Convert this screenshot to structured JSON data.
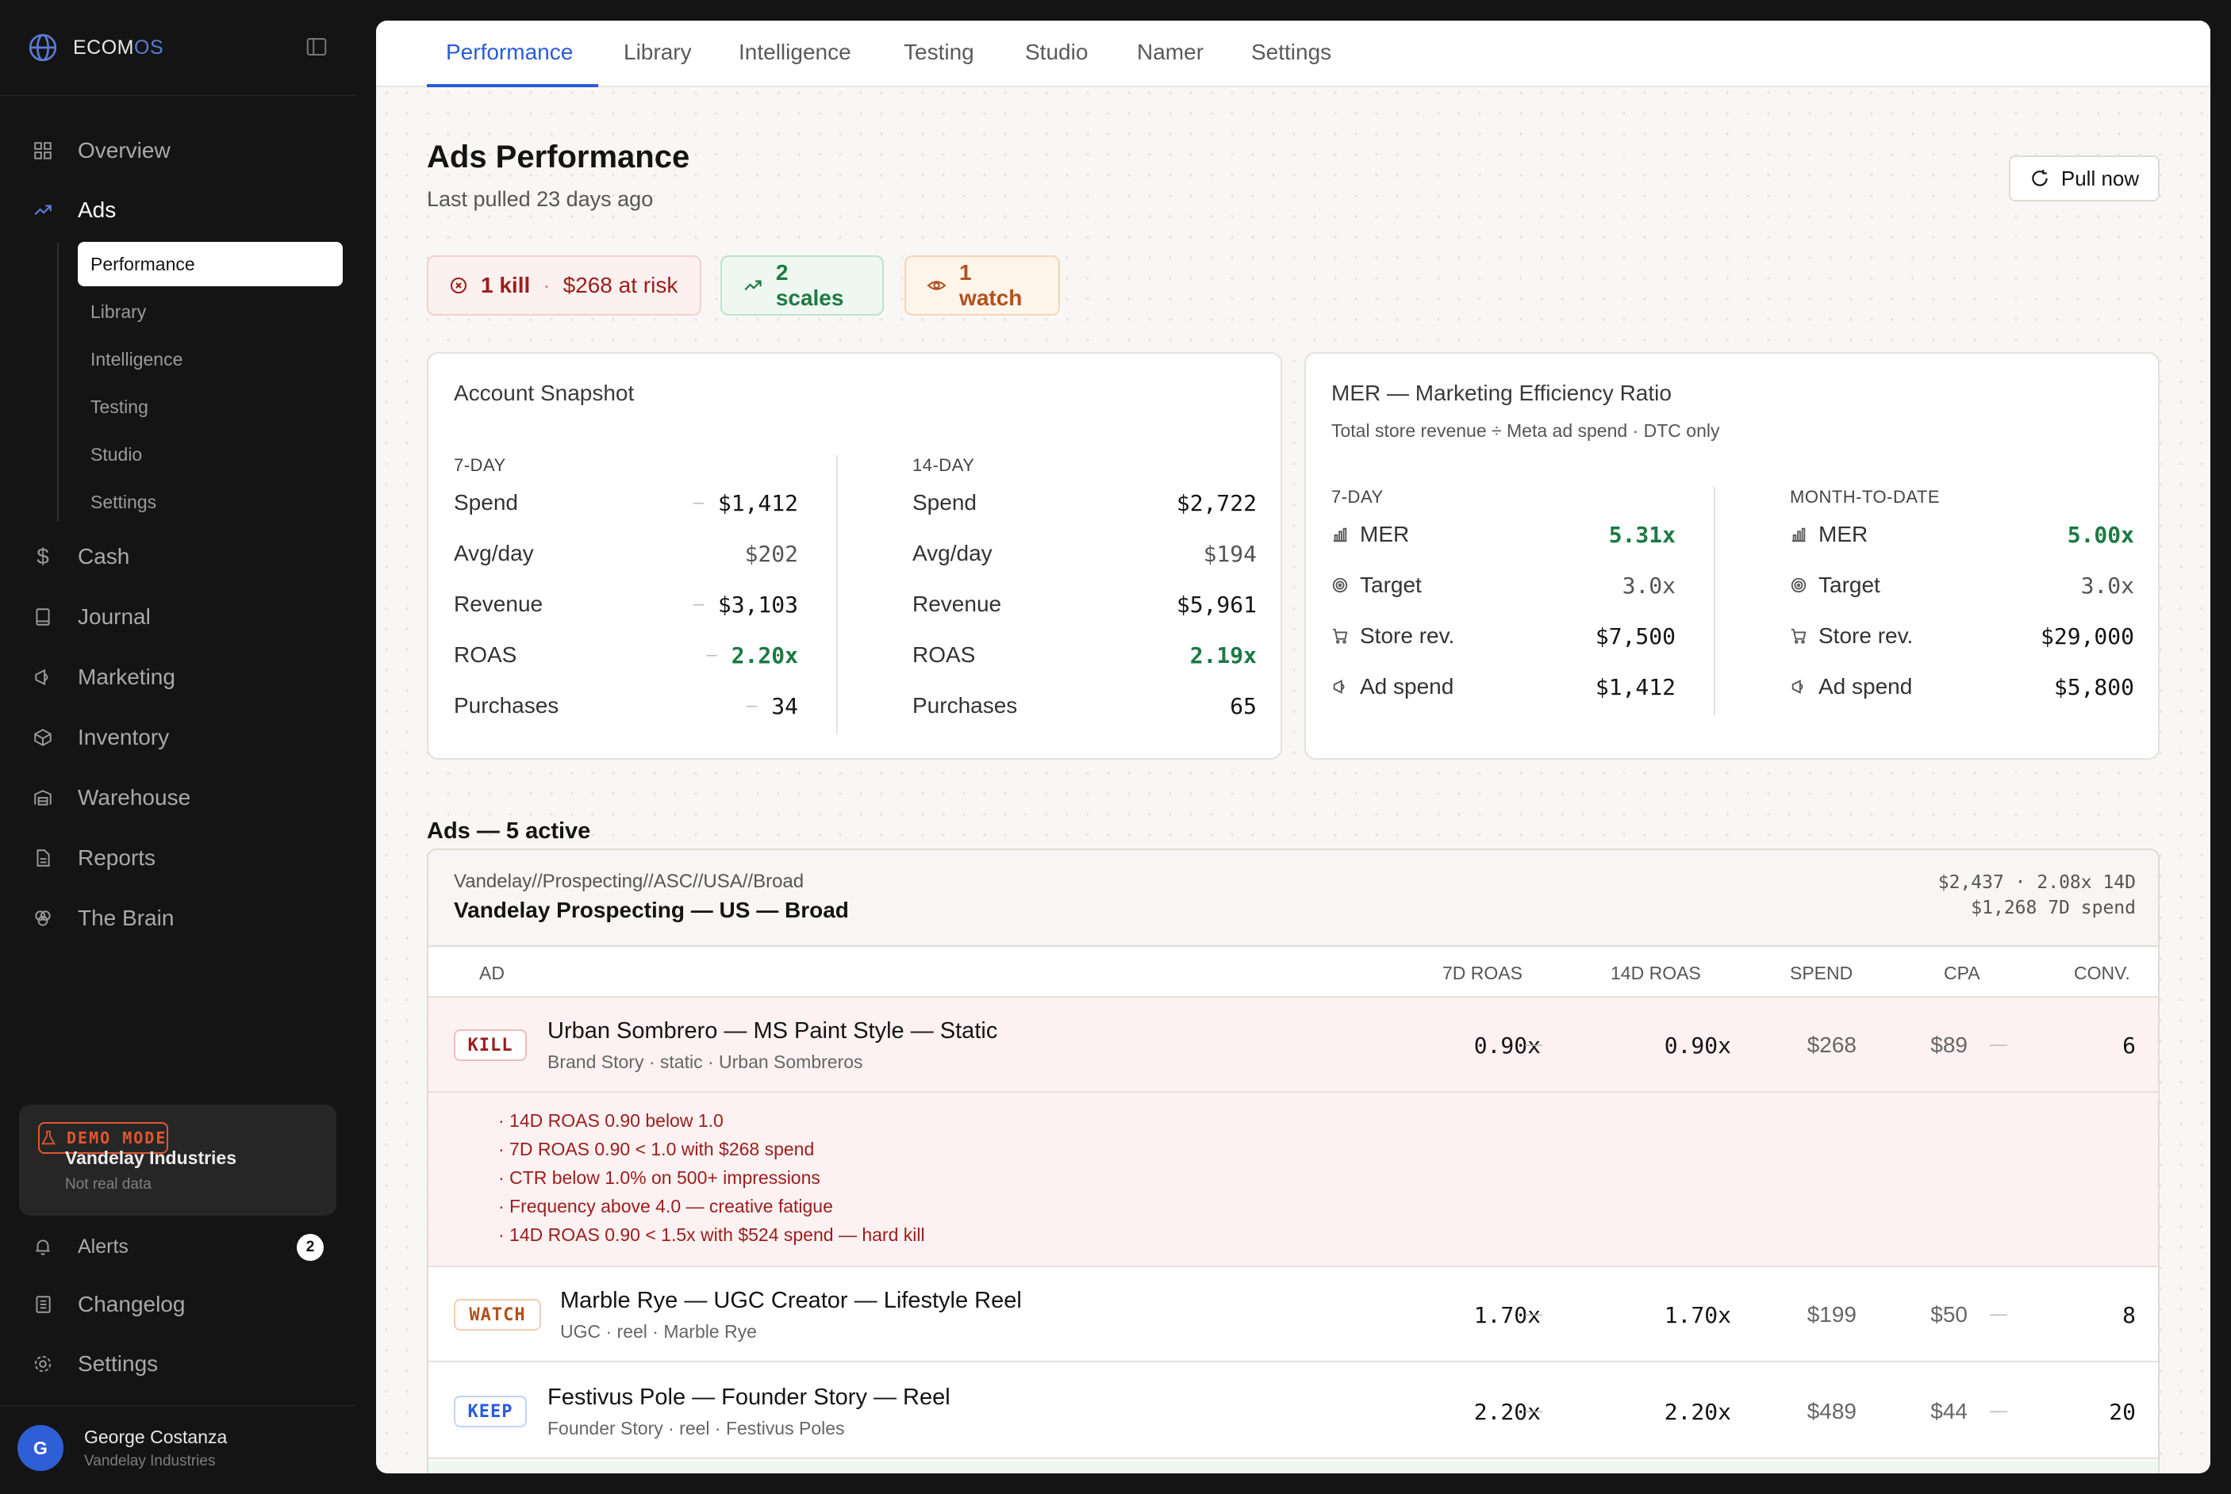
{
  "brand": {
    "name_main": "ECOM",
    "name_accent": "OS"
  },
  "sidebar": {
    "nav": [
      {
        "label": "Overview",
        "icon": "grid-icon"
      },
      {
        "label": "Ads",
        "icon": "trending-up-icon"
      },
      {
        "label": "Cash",
        "icon": "dollar-icon"
      },
      {
        "label": "Journal",
        "icon": "book-icon"
      },
      {
        "label": "Marketing",
        "icon": "megaphone-icon"
      },
      {
        "label": "Inventory",
        "icon": "box-icon"
      },
      {
        "label": "Warehouse",
        "icon": "warehouse-icon"
      },
      {
        "label": "Reports",
        "icon": "file-icon"
      },
      {
        "label": "The Brain",
        "icon": "brain-icon"
      }
    ],
    "ads_sub": [
      "Performance",
      "Library",
      "Intelligence",
      "Testing",
      "Studio",
      "Settings"
    ],
    "demo": {
      "tag": "DEMO MODE",
      "company": "Vandelay Industries",
      "note": "Not real data"
    },
    "bottom": {
      "alerts": "Alerts",
      "alerts_count": "2",
      "changelog": "Changelog",
      "settings": "Settings"
    },
    "user": {
      "initial": "G",
      "name": "George Costanza",
      "company": "Vandelay Industries"
    }
  },
  "tabs": [
    "Performance",
    "Library",
    "Intelligence",
    "Testing",
    "Studio",
    "Namer",
    "Settings"
  ],
  "page": {
    "title": "Ads Performance",
    "subtitle": "Last pulled 23 days ago",
    "pull_button": "Pull now"
  },
  "pills": {
    "kill": {
      "count": "1 kill",
      "sep": "·",
      "risk": "$268 at risk"
    },
    "scale": {
      "label": "2 scales"
    },
    "watch": {
      "label": "1 watch"
    }
  },
  "snapshot": {
    "title": "Account Snapshot",
    "d7": {
      "head": "7-DAY",
      "spend": "$1,412",
      "avg": "$202",
      "revenue": "$3,103",
      "roas": "2.20x",
      "purchases": "34"
    },
    "d14": {
      "head": "14-DAY",
      "spend": "$2,722",
      "avg": "$194",
      "revenue": "$5,961",
      "roas": "2.19x",
      "purchases": "65"
    },
    "labels": {
      "spend": "Spend",
      "avg": "Avg/day",
      "revenue": "Revenue",
      "roas": "ROAS",
      "purchases": "Purchases"
    }
  },
  "mer": {
    "title": "MER — Marketing Efficiency Ratio",
    "subtitle": "Total store revenue ÷ Meta ad spend · DTC only",
    "d7": {
      "head": "7-DAY",
      "mer": "5.31x",
      "target": "3.0x",
      "store": "$7,500",
      "spend": "$1,412"
    },
    "mtd": {
      "head": "MONTH-TO-DATE",
      "mer": "5.00x",
      "target": "3.0x",
      "store": "$29,000",
      "spend": "$5,800"
    },
    "labels": {
      "mer": "MER",
      "target": "Target",
      "store": "Store rev.",
      "spend": "Ad spend"
    }
  },
  "ads": {
    "section_title": "Ads — 5 active",
    "campaign": {
      "path": "Vandelay//Prospecting//ASC//USA//Broad",
      "name": "Vandelay Prospecting — US — Broad",
      "stat1": "$2,437 · 2.08x 14D",
      "stat2": "$1,268 7D spend"
    },
    "headers": {
      "ad": "AD",
      "r7": "7D ROAS",
      "r14": "14D ROAS",
      "spend": "SPEND",
      "cpa": "CPA",
      "conv": "CONV."
    },
    "rows": [
      {
        "tag": "KILL",
        "name": "Urban Sombrero — MS Paint Style — Static",
        "meta": "Brand Story · static · Urban Sombreros",
        "r7": "0.90x",
        "r14": "0.90x",
        "spend": "$268",
        "cpa": "$89",
        "conv": "6"
      },
      {
        "tag": "WATCH",
        "name": "Marble Rye — UGC Creator — Lifestyle Reel",
        "meta": "UGC · reel · Marble Rye",
        "r7": "1.70x",
        "r14": "1.70x",
        "spend": "$199",
        "cpa": "$50",
        "conv": "8"
      },
      {
        "tag": "KEEP",
        "name": "Festivus Pole — Founder Story — Reel",
        "meta": "Founder Story · reel · Festivus Poles",
        "r7": "2.20x",
        "r14": "2.20x",
        "spend": "$489",
        "cpa": "$44",
        "conv": "20"
      }
    ],
    "kill_reasons": [
      "· 14D ROAS 0.90 below 1.0",
      "· 7D ROAS 0.90 < 1.0 with $268 spend",
      "· CTR below 1.0% on 500+ impressions",
      "· Frequency above 4.0 — creative fatigue",
      "· 14D ROAS 0.90 < 1.5x with $524 spend — hard kill"
    ]
  },
  "colors": {
    "accent": "#2a5bd7",
    "kill": "#9b1d1d",
    "scale": "#1c7a43",
    "watch": "#b2501c"
  }
}
